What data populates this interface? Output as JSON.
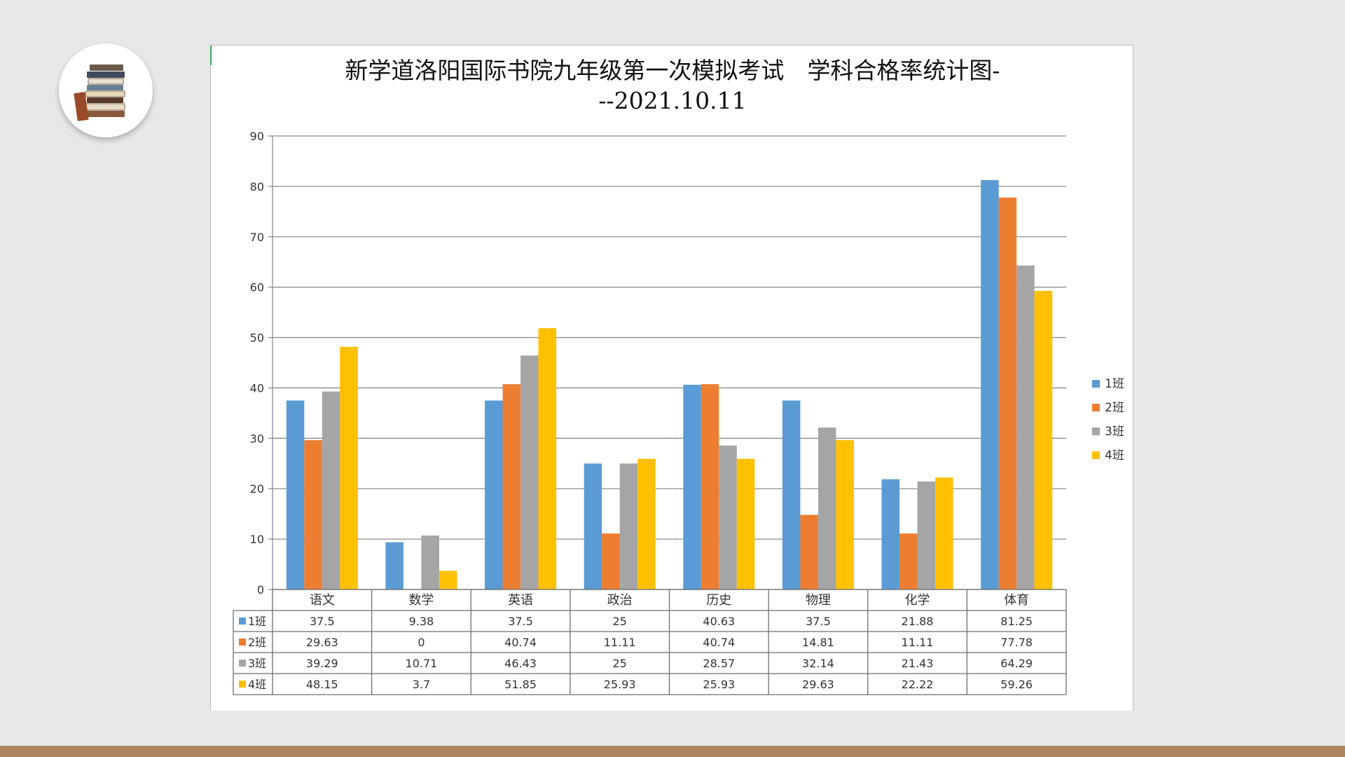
{
  "slide": {
    "logo_icon": "book-stack-icon",
    "accent_bar_color": "#ad8563"
  },
  "chart_data": {
    "type": "bar",
    "title_line1": "新学道洛阳国际书院九年级第一次模拟考试　学科合格率统计图-",
    "title_line2": "--2021.10.11",
    "categories": [
      "语文",
      "数学",
      "英语",
      "政治",
      "历史",
      "物理",
      "化学",
      "体育"
    ],
    "series": [
      {
        "name": "1班",
        "color": "#5b9bd5",
        "values": [
          "37.5",
          "9.38",
          "37.5",
          "25",
          "40.63",
          "37.5",
          "21.88",
          "81.25"
        ]
      },
      {
        "name": "2班",
        "color": "#ed7d31",
        "values": [
          "29.63",
          "0",
          "40.74",
          "11.11",
          "40.74",
          "14.81",
          "11.11",
          "77.78"
        ]
      },
      {
        "name": "3班",
        "color": "#a5a5a5",
        "values": [
          "39.29",
          "10.71",
          "46.43",
          "25",
          "28.57",
          "32.14",
          "21.43",
          "64.29"
        ]
      },
      {
        "name": "4班",
        "color": "#ffc000",
        "values": [
          "48.15",
          "3.7",
          "51.85",
          "25.93",
          "25.93",
          "29.63",
          "22.22",
          "59.26"
        ]
      }
    ],
    "yticks": [
      "0",
      "10",
      "20",
      "30",
      "40",
      "50",
      "60",
      "70",
      "80",
      "90"
    ],
    "ylim": [
      0,
      90
    ],
    "grid": true,
    "legend_position": "right",
    "data_table": true
  }
}
